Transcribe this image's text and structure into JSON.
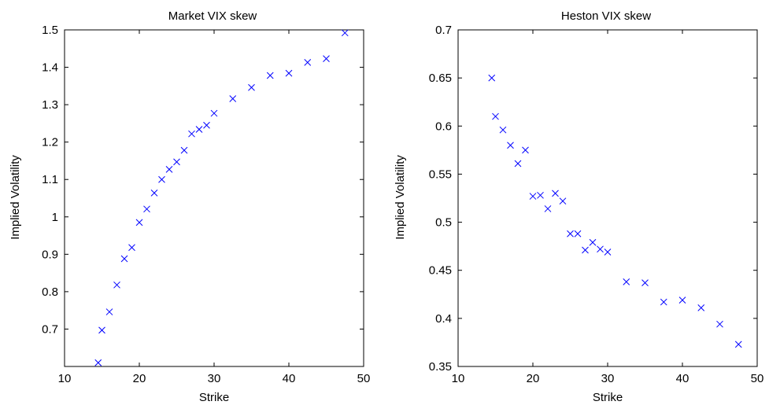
{
  "chart_data": [
    {
      "type": "scatter",
      "title": "Market VIX skew",
      "xlabel": "Strike",
      "ylabel": "Implied Volatility",
      "xlim": [
        10,
        50
      ],
      "ylim": [
        0.6,
        1.5
      ],
      "xticks": [
        10,
        20,
        30,
        40,
        50
      ],
      "yticks": [
        0.7,
        0.8,
        0.9,
        1,
        1.1,
        1.2,
        1.3,
        1.4,
        1.5
      ],
      "xtick_labels": [
        "10",
        "20",
        "30",
        "40",
        "50"
      ],
      "ytick_labels": [
        "0.7",
        "0.8",
        "0.9",
        "1",
        "1.1",
        "1.2",
        "1.3",
        "1.4",
        "1.5"
      ],
      "marker": "x",
      "color": "#0000ff",
      "grid": false,
      "points": [
        {
          "x": 14.5,
          "y": 0.61
        },
        {
          "x": 15,
          "y": 0.697
        },
        {
          "x": 16,
          "y": 0.746
        },
        {
          "x": 17,
          "y": 0.818
        },
        {
          "x": 18,
          "y": 0.888
        },
        {
          "x": 19,
          "y": 0.918
        },
        {
          "x": 20,
          "y": 0.985
        },
        {
          "x": 21,
          "y": 1.021
        },
        {
          "x": 22,
          "y": 1.064
        },
        {
          "x": 23,
          "y": 1.1
        },
        {
          "x": 24,
          "y": 1.127
        },
        {
          "x": 25,
          "y": 1.147
        },
        {
          "x": 26,
          "y": 1.178
        },
        {
          "x": 27,
          "y": 1.222
        },
        {
          "x": 28,
          "y": 1.234
        },
        {
          "x": 29,
          "y": 1.245
        },
        {
          "x": 30,
          "y": 1.277
        },
        {
          "x": 32.5,
          "y": 1.316
        },
        {
          "x": 35,
          "y": 1.346
        },
        {
          "x": 37.5,
          "y": 1.378
        },
        {
          "x": 40,
          "y": 1.384
        },
        {
          "x": 42.5,
          "y": 1.413
        },
        {
          "x": 45,
          "y": 1.423
        },
        {
          "x": 47.5,
          "y": 1.492
        }
      ]
    },
    {
      "type": "scatter",
      "title": "Heston VIX skew",
      "xlabel": "Strike",
      "ylabel": "Implied Volatility",
      "xlim": [
        10,
        50
      ],
      "ylim": [
        0.35,
        0.7
      ],
      "xticks": [
        10,
        20,
        30,
        40,
        50
      ],
      "yticks": [
        0.35,
        0.4,
        0.45,
        0.5,
        0.55,
        0.6,
        0.65,
        0.7
      ],
      "xtick_labels": [
        "10",
        "20",
        "30",
        "40",
        "50"
      ],
      "ytick_labels": [
        "0.35",
        "0.4",
        "0.45",
        "0.5",
        "0.55",
        "0.6",
        "0.65",
        "0.7"
      ],
      "marker": "x",
      "color": "#0000ff",
      "grid": false,
      "points": [
        {
          "x": 14.5,
          "y": 0.65
        },
        {
          "x": 15,
          "y": 0.61
        },
        {
          "x": 16,
          "y": 0.596
        },
        {
          "x": 17,
          "y": 0.58
        },
        {
          "x": 18,
          "y": 0.561
        },
        {
          "x": 19,
          "y": 0.575
        },
        {
          "x": 20,
          "y": 0.527
        },
        {
          "x": 21,
          "y": 0.528
        },
        {
          "x": 22,
          "y": 0.514
        },
        {
          "x": 23,
          "y": 0.53
        },
        {
          "x": 24,
          "y": 0.522
        },
        {
          "x": 25,
          "y": 0.488
        },
        {
          "x": 26,
          "y": 0.488
        },
        {
          "x": 27,
          "y": 0.471
        },
        {
          "x": 28,
          "y": 0.479
        },
        {
          "x": 29,
          "y": 0.472
        },
        {
          "x": 30,
          "y": 0.469
        },
        {
          "x": 32.5,
          "y": 0.438
        },
        {
          "x": 35,
          "y": 0.437
        },
        {
          "x": 37.5,
          "y": 0.417
        },
        {
          "x": 40,
          "y": 0.419
        },
        {
          "x": 42.5,
          "y": 0.411
        },
        {
          "x": 45,
          "y": 0.394
        },
        {
          "x": 47.5,
          "y": 0.373
        }
      ]
    }
  ]
}
